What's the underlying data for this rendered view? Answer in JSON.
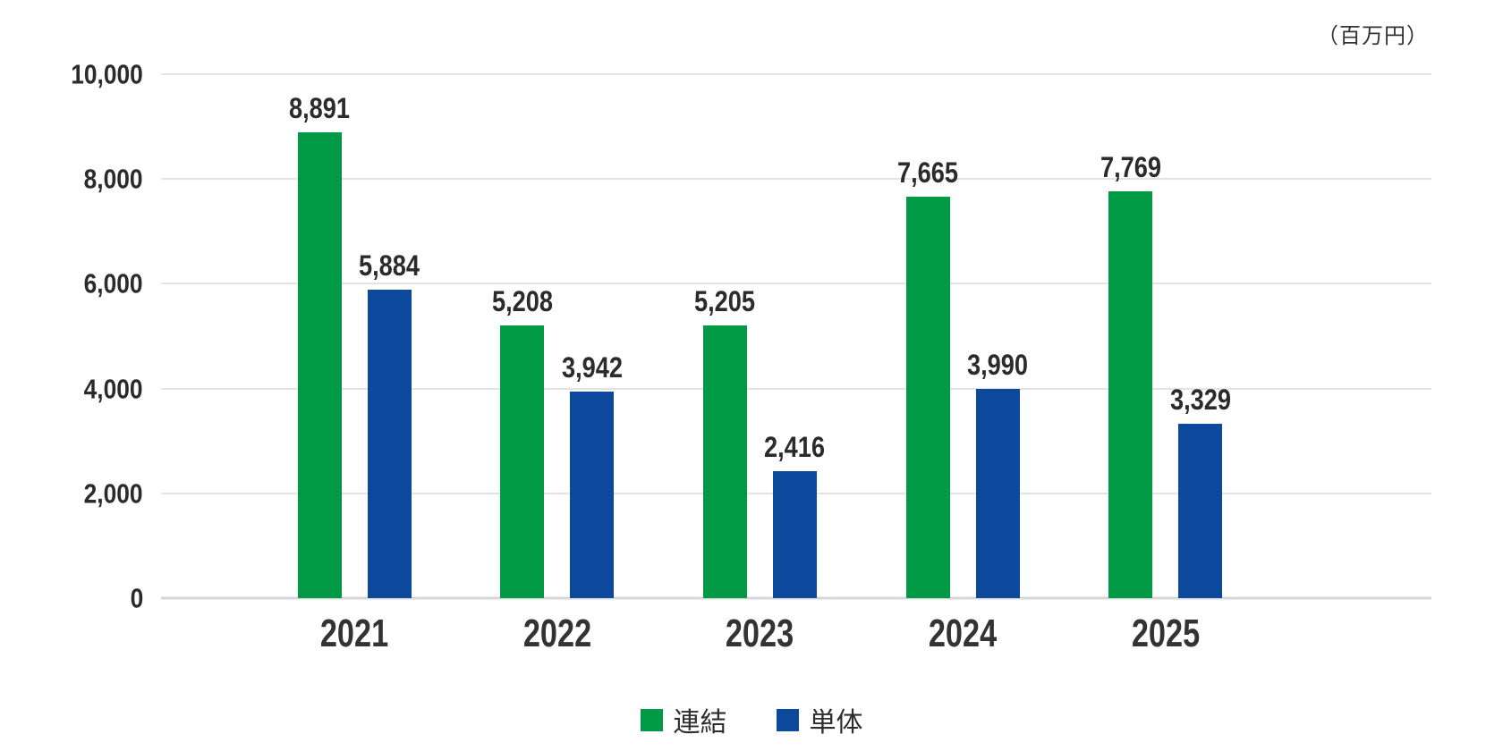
{
  "page": {
    "background": "#ffffff",
    "text_color": "#2e2e2e",
    "grid_color": "#e3e3e3",
    "baseline_color": "#d6d6d6"
  },
  "chart_data": {
    "type": "bar",
    "title": "",
    "unit_label": "（百万円）",
    "categories": [
      "2021",
      "2022",
      "2023",
      "2024",
      "2025"
    ],
    "series": [
      {
        "name": "連結",
        "slug": "consolidated",
        "color": "#009944",
        "values": [
          8891,
          5208,
          5205,
          7665,
          7769
        ]
      },
      {
        "name": "単体",
        "slug": "standalone",
        "color": "#0c489c",
        "values": [
          5884,
          3942,
          2416,
          3990,
          3329
        ]
      }
    ],
    "value_labels": [
      [
        "8,891",
        "5,208",
        "5,205",
        "7,665",
        "7,769"
      ],
      [
        "5,884",
        "3,942",
        "2,416",
        "3,990",
        "3,329"
      ]
    ],
    "xlabel": "",
    "ylabel": "",
    "ylim": [
      0,
      10000
    ],
    "yticks": [
      0,
      2000,
      4000,
      6000,
      8000,
      10000
    ],
    "ytick_labels": [
      "0",
      "2,000",
      "4,000",
      "6,000",
      "8,000",
      "10,000"
    ],
    "grid": true,
    "legend_position": "bottom"
  }
}
